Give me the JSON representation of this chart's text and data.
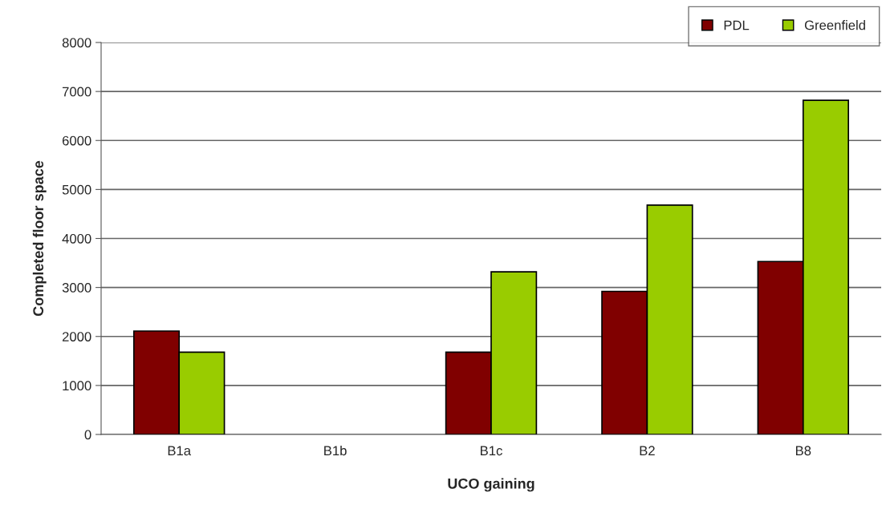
{
  "chart_data": {
    "type": "bar",
    "xlabel": "UCO gaining",
    "ylabel": "Completed floor space",
    "categories": [
      "B1a",
      "B1b",
      "B1c",
      "B2",
      "B8"
    ],
    "series": [
      {
        "name": "PDL",
        "color": "#800000",
        "values": [
          2110,
          null,
          1680,
          2920,
          3530
        ]
      },
      {
        "name": "Greenfield",
        "color": "#99cc00",
        "values": [
          1680,
          null,
          3320,
          4680,
          6820
        ]
      }
    ],
    "ylim": [
      0,
      8000
    ],
    "yticks": [
      0,
      1000,
      2000,
      3000,
      4000,
      5000,
      6000,
      7000,
      8000
    ],
    "grid": "y",
    "legend": "top right"
  }
}
